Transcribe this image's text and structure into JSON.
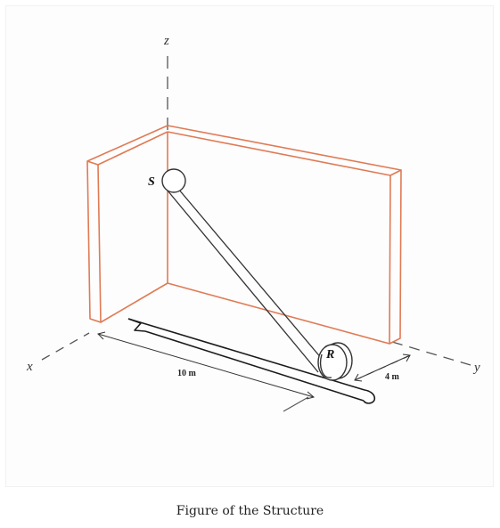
{
  "diagram": {
    "axes": {
      "x": "x",
      "y": "y",
      "z": "z"
    },
    "points": {
      "top": "S",
      "bottom": "R"
    },
    "dimensions": {
      "length": "10 m",
      "width": "4 m"
    },
    "colors": {
      "wall": "#e07a55",
      "line": "#333333",
      "dash": "#555555"
    }
  },
  "caption": "Figure of the Structure"
}
